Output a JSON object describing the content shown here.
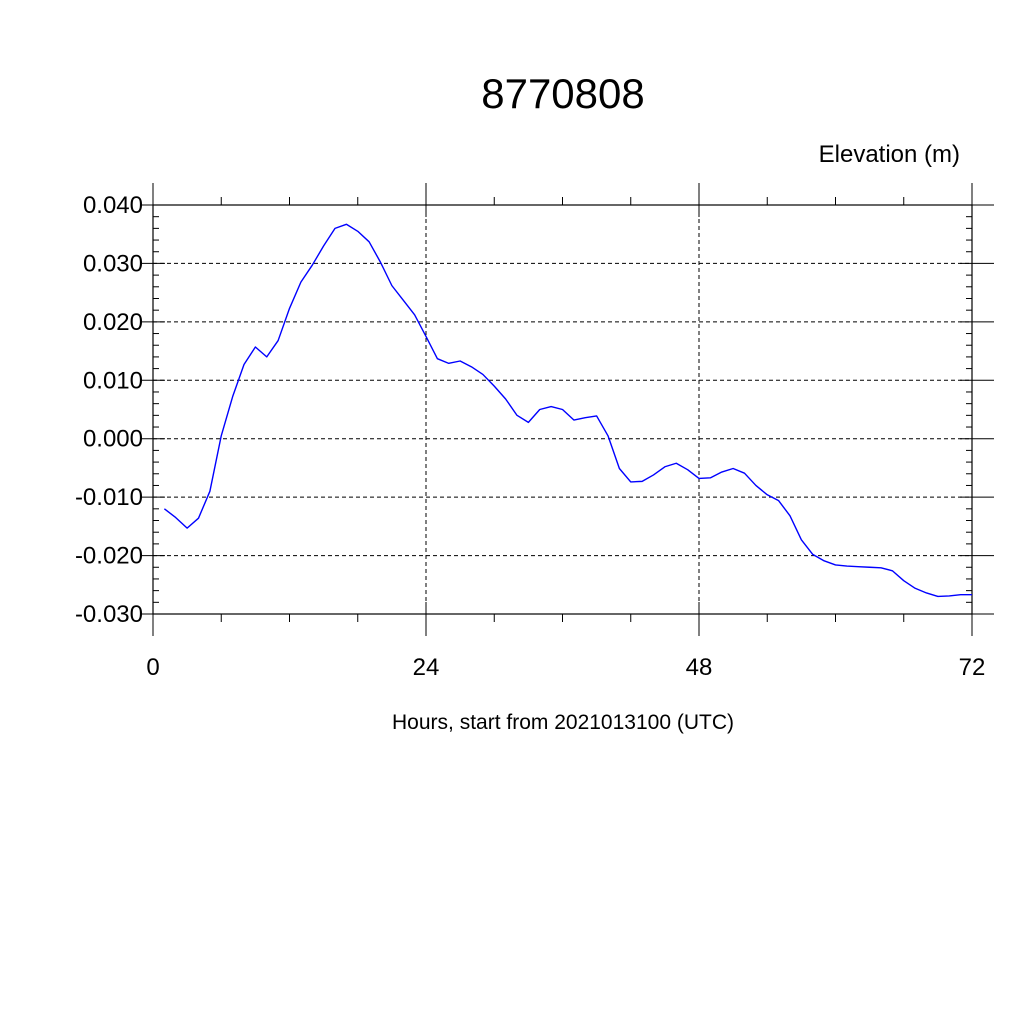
{
  "chart_data": {
    "type": "line",
    "title": "8770808",
    "unit_label": "Elevation (m)",
    "xlabel": "Hours, start from 2021013100 (UTC)",
    "ylabel": "",
    "xlim": [
      0,
      72
    ],
    "ylim": [
      -0.03,
      0.04
    ],
    "x_ticks": [
      0,
      24,
      48,
      72
    ],
    "x_tick_labels": [
      "0",
      "24",
      "48",
      "72"
    ],
    "y_ticks": [
      -0.03,
      -0.02,
      -0.01,
      0.0,
      0.01,
      0.02,
      0.03,
      0.04
    ],
    "y_tick_labels": [
      "-0.030",
      "-0.020",
      "-0.010",
      "0.000",
      "0.010",
      "0.020",
      "0.030",
      "0.040"
    ],
    "grid": true,
    "line_color": "#0000ff",
    "series": [
      {
        "x": [
          1,
          2,
          3,
          4,
          5,
          6,
          7,
          8,
          9,
          10,
          11,
          12,
          13,
          14,
          15,
          16,
          17,
          18,
          19,
          20,
          21,
          22,
          23,
          24,
          25,
          26,
          27,
          28,
          29,
          30,
          31,
          32,
          33,
          34,
          35,
          36,
          37,
          38,
          39,
          40,
          41,
          42,
          43,
          44,
          45,
          46,
          47,
          48,
          49,
          50,
          51,
          52,
          53,
          54,
          55,
          56,
          57,
          58,
          59,
          60,
          61,
          62,
          63,
          64,
          65,
          66,
          67,
          68,
          69,
          70,
          71,
          72
        ],
        "values": [
          -0.012,
          -0.0135,
          -0.0153,
          -0.0136,
          -0.009,
          0.0005,
          0.0072,
          0.0127,
          0.0157,
          0.014,
          0.0168,
          0.0223,
          0.0268,
          0.0297,
          0.033,
          0.036,
          0.0367,
          0.0355,
          0.0337,
          0.0302,
          0.0262,
          0.0237,
          0.0212,
          0.0175,
          0.0137,
          0.0129,
          0.0133,
          0.0123,
          0.011,
          0.009,
          0.0068,
          0.004,
          0.0028,
          0.005,
          0.0055,
          0.005,
          0.0032,
          0.0036,
          0.0039,
          0.0005,
          -0.0051,
          -0.0074,
          -0.0073,
          -0.0062,
          -0.0048,
          -0.0042,
          -0.0053,
          -0.0068,
          -0.0067,
          -0.0057,
          -0.0051,
          -0.0059,
          -0.008,
          -0.0096,
          -0.0106,
          -0.0132,
          -0.0173,
          -0.0198,
          -0.0209,
          -0.0216,
          -0.0218,
          -0.0219,
          -0.022,
          -0.0221,
          -0.0226,
          -0.0243,
          -0.0256,
          -0.0264,
          -0.027,
          -0.0269,
          -0.0267,
          -0.0267
        ]
      }
    ]
  }
}
